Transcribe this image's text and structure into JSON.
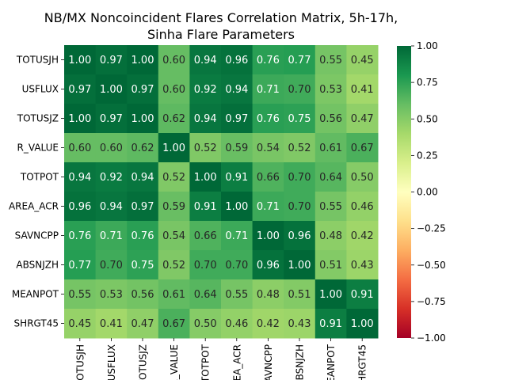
{
  "chart_data": {
    "type": "heatmap",
    "title": "NB/MX Noncoincident Flares Correlation Matrix, 5h-17h,",
    "subtitle": "Sinha Flare Parameters",
    "row_labels": [
      "TOTUSJH",
      "USFLUX",
      "TOTUSJZ",
      "R_VALUE",
      "TOTPOT",
      "AREA_ACR",
      "SAVNCPP",
      "ABSNJZH",
      "MEANPOT",
      "SHRGT45"
    ],
    "col_labels": [
      "TOTUSJH",
      "USFLUX",
      "TOTUSJZ",
      "R_VALUE",
      "TOTPOT",
      "AREA_ACR",
      "SAVNCPP",
      "ABSNJZH",
      "MEANPOT",
      "SHRGT45"
    ],
    "values": [
      [
        1.0,
        0.97,
        1.0,
        0.6,
        0.94,
        0.96,
        0.76,
        0.77,
        0.55,
        0.45
      ],
      [
        0.97,
        1.0,
        0.97,
        0.6,
        0.92,
        0.94,
        0.71,
        0.7,
        0.53,
        0.41
      ],
      [
        1.0,
        0.97,
        1.0,
        0.62,
        0.94,
        0.97,
        0.76,
        0.75,
        0.56,
        0.47
      ],
      [
        0.6,
        0.6,
        0.62,
        1.0,
        0.52,
        0.59,
        0.54,
        0.52,
        0.61,
        0.67
      ],
      [
        0.94,
        0.92,
        0.94,
        0.52,
        1.0,
        0.91,
        0.66,
        0.7,
        0.64,
        0.5
      ],
      [
        0.96,
        0.94,
        0.97,
        0.59,
        0.91,
        1.0,
        0.71,
        0.7,
        0.55,
        0.46
      ],
      [
        0.76,
        0.71,
        0.76,
        0.54,
        0.66,
        0.71,
        1.0,
        0.96,
        0.48,
        0.42
      ],
      [
        0.77,
        0.7,
        0.75,
        0.52,
        0.7,
        0.7,
        0.96,
        1.0,
        0.51,
        0.43
      ],
      [
        0.55,
        0.53,
        0.56,
        0.61,
        0.64,
        0.55,
        0.48,
        0.51,
        1.0,
        0.91
      ],
      [
        0.45,
        0.41,
        0.47,
        0.67,
        0.5,
        0.46,
        0.42,
        0.43,
        0.91,
        1.0
      ]
    ],
    "vmin": -1.0,
    "vmax": 1.0,
    "colormap": "RdYlGn",
    "colorbar_ticks": [
      "1.00",
      "0.75",
      "0.50",
      "0.25",
      "0.00",
      "−0.25",
      "−0.50",
      "−0.75",
      "−1.00"
    ],
    "colorbar_tick_values": [
      1.0,
      0.75,
      0.5,
      0.25,
      0.0,
      -0.25,
      -0.5,
      -0.75,
      -1.0
    ],
    "colorbar_placement": "right"
  }
}
